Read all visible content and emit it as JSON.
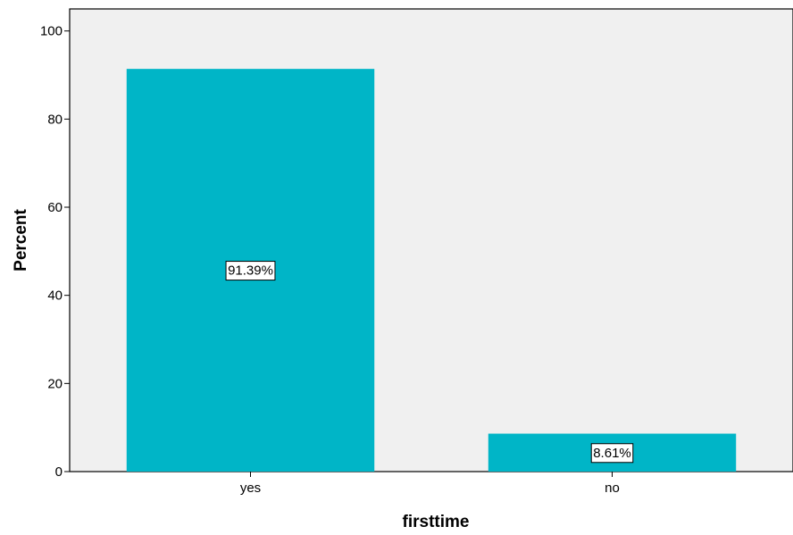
{
  "chart_data": {
    "type": "bar",
    "title": "",
    "xlabel": "firsttime",
    "ylabel": "Percent",
    "categories": [
      "yes",
      "no"
    ],
    "values": [
      91.39,
      8.61
    ],
    "data_labels": [
      "91.39%",
      "8.61%"
    ],
    "ylim": [
      0,
      105
    ],
    "yticks": [
      0,
      20,
      40,
      60,
      80,
      100
    ],
    "ytick_labels": [
      "0",
      "20",
      "40",
      "60",
      "80",
      "100"
    ],
    "grid": false,
    "colors": {
      "bar": "#00b5c7",
      "plot_background": "#f0f0f0",
      "axis": "#000000",
      "label_box": "#ffffff"
    }
  }
}
